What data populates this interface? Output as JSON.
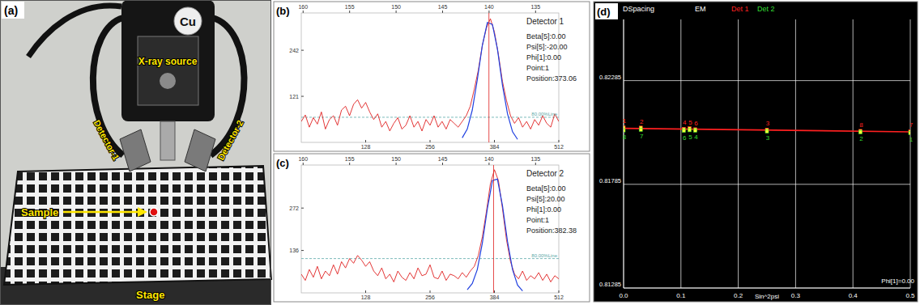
{
  "photo": {
    "panel_label": "(a)",
    "target": "Cu",
    "source": "X-ray source",
    "detector_1": "Detector-1",
    "detector_2": "Detector-2",
    "sample": "Sample",
    "stage": "Stage"
  },
  "chart_data": [
    {
      "type": "line",
      "panel_label": "(b)",
      "title": "Detector  1",
      "info": [
        "Beta[5]:0.00",
        "Psi[5]:-20.00",
        "Phi[1]:0.00",
        "Point:1"
      ],
      "position": {
        "value": 373.06,
        "label": "Position:373.06"
      },
      "threshold": {
        "value": 66,
        "label": "80.00%Line"
      },
      "xlim": [
        0,
        512
      ],
      "xticks": [
        128,
        256,
        384,
        512
      ],
      "x2lim": [
        160.2,
        132.5
      ],
      "x2ticks": [
        160,
        155,
        150,
        145,
        140,
        135
      ],
      "ylim": [
        0,
        340
      ],
      "yticks": [
        121,
        242
      ],
      "series": [
        {
          "color": "#e02020",
          "x": [
            0,
            8,
            16,
            24,
            32,
            40,
            48,
            56,
            64,
            72,
            80,
            88,
            96,
            104,
            112,
            120,
            128,
            136,
            144,
            152,
            160,
            168,
            176,
            184,
            192,
            200,
            208,
            216,
            224,
            232,
            240,
            248,
            256,
            264,
            272,
            280,
            288,
            296,
            304,
            312,
            320,
            328,
            336,
            344,
            352,
            360,
            368,
            376,
            384,
            392,
            400,
            408,
            416,
            424,
            432,
            440,
            448,
            456,
            464,
            472,
            480,
            488,
            496,
            504,
            512
          ],
          "values": [
            55,
            72,
            40,
            65,
            48,
            80,
            35,
            60,
            70,
            45,
            85,
            95,
            70,
            100,
            112,
            90,
            105,
            80,
            60,
            75,
            40,
            55,
            30,
            50,
            65,
            35,
            45,
            70,
            40,
            55,
            30,
            60,
            45,
            70,
            40,
            55,
            35,
            60,
            50,
            40,
            55,
            70,
            95,
            140,
            190,
            255,
            300,
            325,
            290,
            230,
            160,
            110,
            70,
            50,
            65,
            40,
            55,
            35,
            60,
            45,
            70,
            50,
            40,
            75,
            55
          ]
        },
        {
          "color": "#2040e0",
          "x": [
            320,
            330,
            340,
            350,
            360,
            370,
            380,
            390,
            400,
            410,
            420,
            430
          ],
          "values": [
            12,
            35,
            85,
            165,
            255,
            315,
            310,
            245,
            150,
            75,
            28,
            8
          ]
        }
      ]
    },
    {
      "type": "line",
      "panel_label": "(c)",
      "title": "Detector  2",
      "info": [
        "Beta[5]:0.00",
        "Psi[5]:20.00",
        "Phi[1]:0.00",
        "Point:1"
      ],
      "position": {
        "value": 382.38,
        "label": "Position:382.38"
      },
      "threshold": {
        "value": 110,
        "label": "80.00%Line"
      },
      "xlim": [
        0,
        512
      ],
      "xticks": [
        128,
        256,
        384,
        512
      ],
      "x2lim": [
        160.2,
        132.5
      ],
      "x2ticks": [
        160,
        155,
        150,
        145,
        140,
        135
      ],
      "ylim": [
        0,
        410
      ],
      "yticks": [
        136,
        272
      ],
      "series": [
        {
          "color": "#e02020",
          "x": [
            0,
            8,
            16,
            24,
            32,
            40,
            48,
            56,
            64,
            72,
            80,
            88,
            96,
            104,
            112,
            120,
            128,
            136,
            144,
            152,
            160,
            168,
            176,
            184,
            192,
            200,
            208,
            216,
            224,
            232,
            240,
            248,
            256,
            264,
            272,
            280,
            288,
            296,
            304,
            312,
            320,
            328,
            336,
            344,
            352,
            360,
            368,
            376,
            384,
            392,
            400,
            408,
            416,
            424,
            432,
            440,
            448,
            456,
            464,
            472,
            480,
            488,
            496,
            504,
            512
          ],
          "values": [
            60,
            40,
            75,
            50,
            85,
            45,
            70,
            55,
            90,
            60,
            100,
            80,
            110,
            95,
            120,
            105,
            85,
            100,
            70,
            55,
            80,
            45,
            60,
            35,
            70,
            50,
            40,
            65,
            45,
            80,
            55,
            60,
            90,
            50,
            45,
            70,
            40,
            60,
            55,
            45,
            65,
            50,
            70,
            85,
            120,
            180,
            260,
            350,
            395,
            360,
            270,
            170,
            100,
            60,
            45,
            70,
            40,
            55,
            45,
            65,
            40,
            60,
            35,
            55,
            45
          ]
        },
        {
          "color": "#2040e0",
          "x": [
            330,
            340,
            350,
            360,
            370,
            380,
            390,
            400,
            410,
            420,
            430,
            440
          ],
          "values": [
            10,
            30,
            75,
            160,
            270,
            360,
            365,
            280,
            165,
            75,
            25,
            6
          ]
        }
      ]
    },
    {
      "type": "scatter",
      "panel_label": "(d)",
      "title": "DSpacing",
      "subtitle": "EM",
      "x_label": "Sin^2psi",
      "annotation": "Phi[1]=0.00",
      "xlim": [
        0,
        0.5
      ],
      "xticks": [
        {
          "value": 0,
          "label": "0.0"
        },
        0.1,
        0.2,
        0.3,
        0.4,
        0.5
      ],
      "ylim": [
        0.81285,
        0.8258
      ],
      "yticks": [
        0.81285,
        0.81785,
        0.82285
      ],
      "grid": true,
      "legend": "top",
      "series": [
        {
          "name": "Det 1",
          "type": "scatter",
          "color": "#ff2020",
          "marker": "square",
          "x": [
            0,
            0.03,
            0.105,
            0.115,
            0.125,
            0.25,
            0.413,
            0.5
          ],
          "values": [
            0.8206,
            0.82058,
            0.82052,
            0.82055,
            0.8205,
            0.82048,
            0.82042,
            0.8204
          ],
          "labels": [
            "1",
            "2",
            "4",
            "5",
            "6",
            "3",
            "8",
            "7"
          ]
        },
        {
          "name": "Det 2",
          "type": "scatter",
          "color": "#33dd33",
          "marker": "square",
          "x": [
            0,
            0.03,
            0.105,
            0.115,
            0.125,
            0.25,
            0.413,
            0.5
          ],
          "values": [
            0.82045,
            0.82048,
            0.82043,
            0.82046,
            0.82044,
            0.8204,
            0.82036,
            0.82032
          ],
          "labels": [
            "8",
            "7",
            "6",
            "5",
            "4",
            "3",
            "2",
            "1"
          ]
        },
        {
          "type": "line",
          "color": "#ff2020",
          "x": [
            0,
            0.5
          ],
          "values": [
            0.82055,
            0.82038
          ]
        }
      ]
    }
  ]
}
